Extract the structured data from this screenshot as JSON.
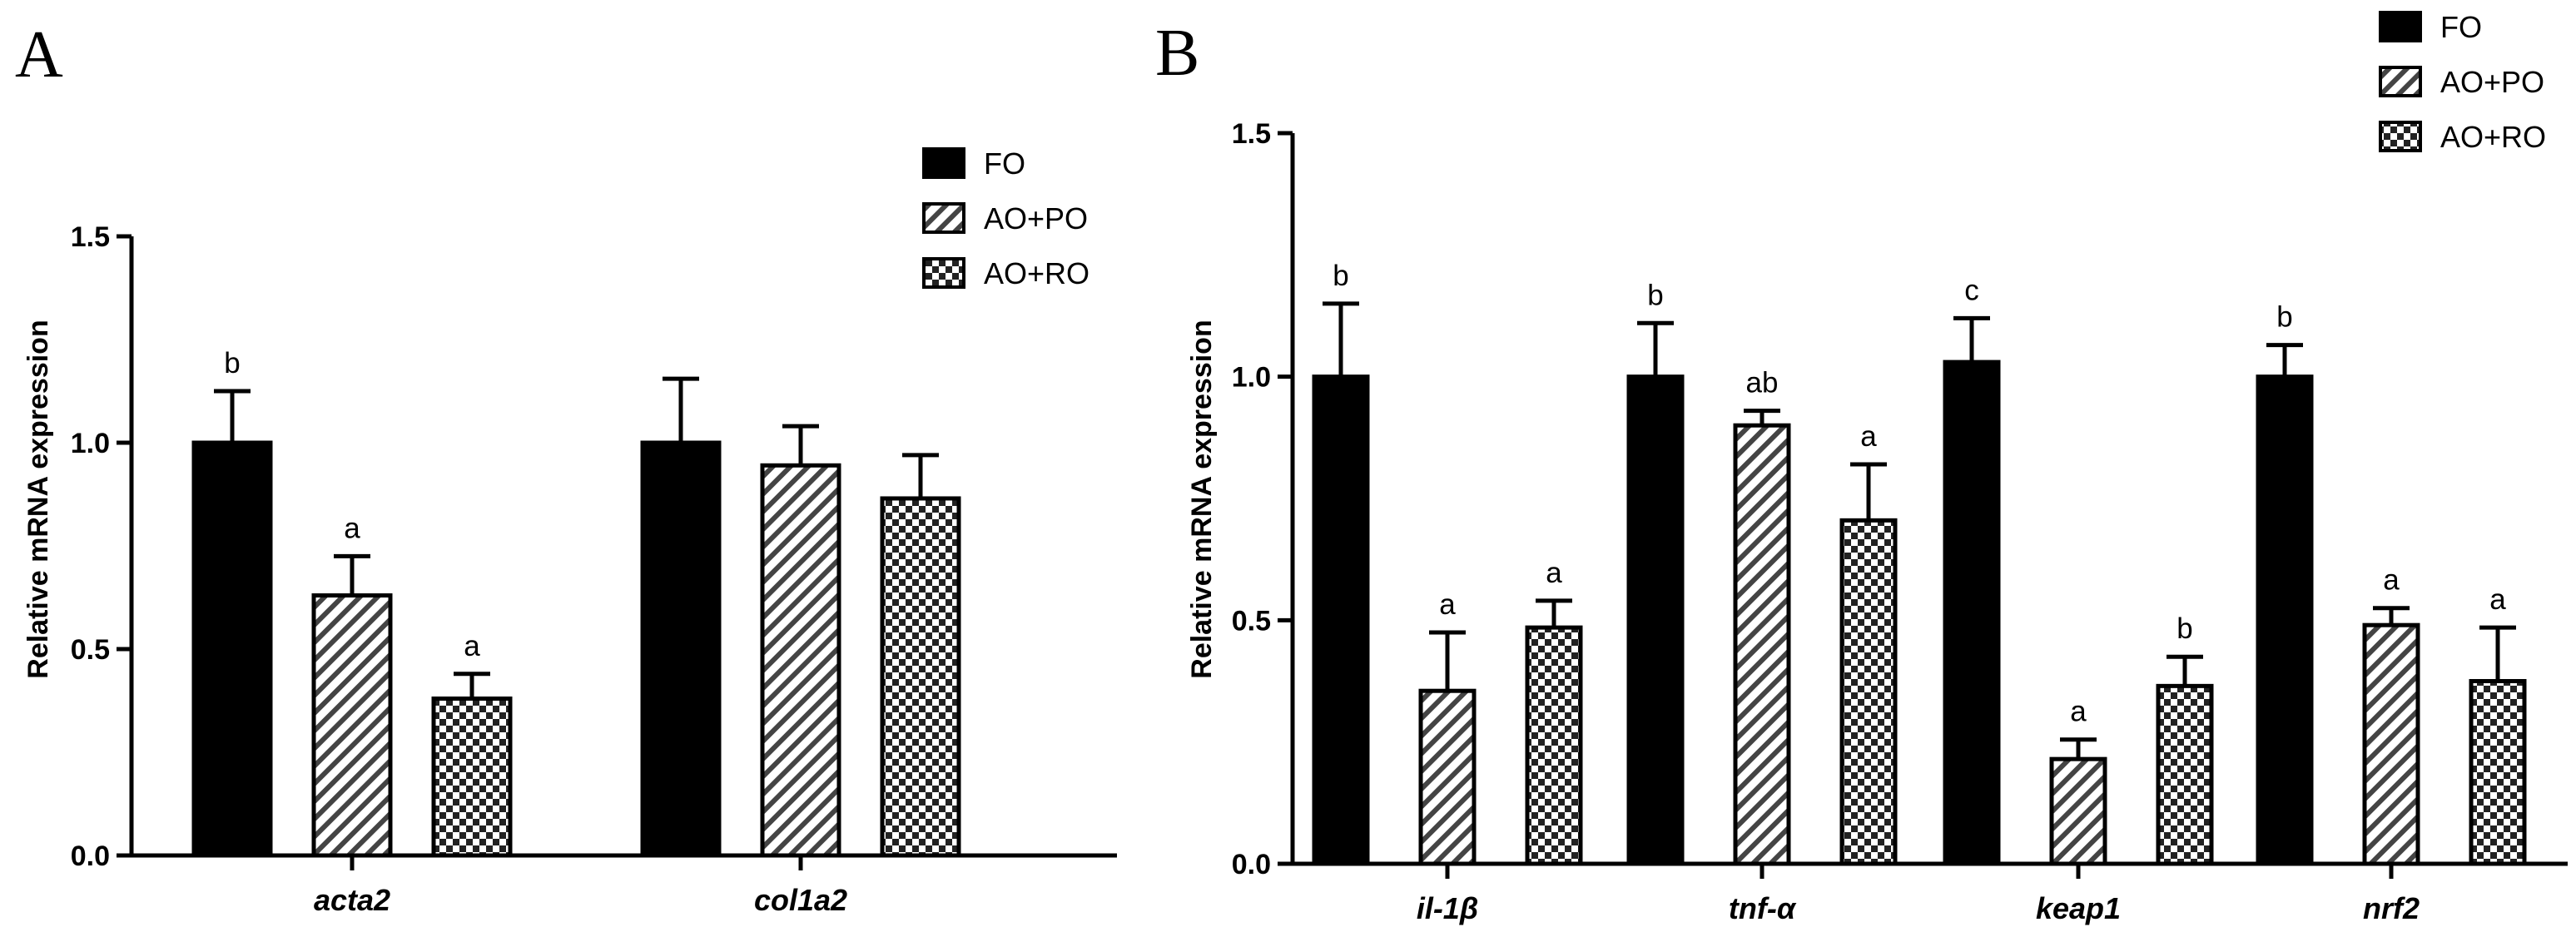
{
  "chart_data": [
    {
      "panel": "A",
      "type": "bar",
      "ylabel": "Relative mRNA expression",
      "ylim": [
        0,
        1.5
      ],
      "yticks": [
        "0.0",
        "0.5",
        "1.0",
        "1.5"
      ],
      "categories": [
        "acta2",
        "col1a2"
      ],
      "series": [
        {
          "name": "FO",
          "pattern": "solid",
          "values": [
            1.0,
            1.0
          ],
          "errors": [
            0.125,
            0.155
          ],
          "labels": [
            "b",
            ""
          ]
        },
        {
          "name": "AO+PO",
          "pattern": "hatch",
          "values": [
            0.63,
            0.945
          ],
          "errors": [
            0.095,
            0.095
          ],
          "labels": [
            "a",
            ""
          ]
        },
        {
          "name": "AO+RO",
          "pattern": "checker",
          "values": [
            0.38,
            0.865
          ],
          "errors": [
            0.06,
            0.105
          ],
          "labels": [
            "a",
            ""
          ]
        }
      ],
      "legend_position": "top-right"
    },
    {
      "panel": "B",
      "type": "bar",
      "ylabel": "Relative mRNA expression",
      "ylim": [
        0,
        1.5
      ],
      "yticks": [
        "0.0",
        "0.5",
        "1.0",
        "1.5"
      ],
      "categories": [
        "il-1β",
        "tnf-α",
        "keap1",
        "nrf2"
      ],
      "series": [
        {
          "name": "FO",
          "pattern": "solid",
          "values": [
            1.0,
            1.0,
            1.03,
            1.0
          ],
          "errors": [
            0.15,
            0.11,
            0.09,
            0.065
          ],
          "labels": [
            "b",
            "b",
            "c",
            "b"
          ]
        },
        {
          "name": "AO+PO",
          "pattern": "hatch",
          "values": [
            0.355,
            0.9,
            0.215,
            0.49
          ],
          "errors": [
            0.12,
            0.03,
            0.04,
            0.035
          ],
          "labels": [
            "a",
            "ab",
            "a",
            "a"
          ]
        },
        {
          "name": "AO+RO",
          "pattern": "checker",
          "values": [
            0.485,
            0.705,
            0.365,
            0.375
          ],
          "errors": [
            0.055,
            0.115,
            0.06,
            0.11
          ],
          "labels": [
            "a",
            "a",
            "b",
            "a"
          ]
        }
      ],
      "legend_position": "top-right"
    }
  ]
}
